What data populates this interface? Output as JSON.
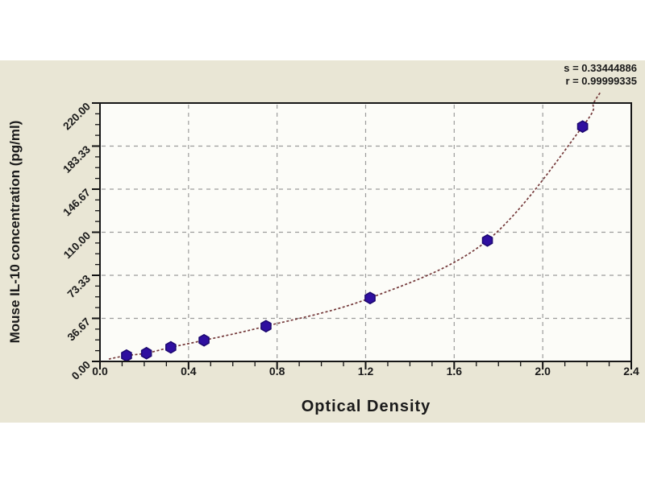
{
  "colors": {
    "page_background": "#ffffff",
    "figure_background": "#e9e6d5",
    "plot_background": "#fcfcf8",
    "plot_border": "#161616",
    "grid": "#9b9b9b",
    "tick": "#111111",
    "curve": "#74393a",
    "marker_fill": "#2f0fa0",
    "marker_stroke": "#1c0870",
    "text": "#1a1a1a"
  },
  "chart_data": {
    "type": "scatter",
    "title": "",
    "xlabel": "Optical Density",
    "ylabel": "Mouse IL-10 concentration (pg/ml)",
    "xlim": [
      0.0,
      2.4
    ],
    "ylim": [
      0.0,
      220.0
    ],
    "x_ticks": [
      0.0,
      0.4,
      0.8,
      1.2,
      1.6,
      2.0,
      2.4
    ],
    "x_tick_labels": [
      "0.0",
      "0.4",
      "0.8",
      "1.2",
      "1.6",
      "2.0",
      "2.4"
    ],
    "x_minor_step": 0.1,
    "y_ticks": [
      0.0,
      36.67,
      73.33,
      110.0,
      146.67,
      183.33,
      220.0
    ],
    "y_tick_labels": [
      "0.00",
      "36.67",
      "73.33",
      "110.00",
      "146.67",
      "183.33",
      "220.00"
    ],
    "y_minor_divisions_per_major": 4,
    "grid": "dashed-on-major-ticks",
    "legend": "none",
    "series": [
      {
        "name": "standard-points",
        "type": "scatter",
        "marker": "hexagon",
        "color": "#2f0fa0",
        "points": [
          [
            0.12,
            5
          ],
          [
            0.21,
            7
          ],
          [
            0.32,
            12
          ],
          [
            0.47,
            18
          ],
          [
            0.75,
            30
          ],
          [
            1.22,
            54
          ],
          [
            1.75,
            103
          ],
          [
            2.18,
            200
          ]
        ]
      },
      {
        "name": "fitted-curve",
        "type": "line",
        "style": "dashed",
        "color": "#74393a",
        "points": [
          [
            0.04,
            2
          ],
          [
            0.12,
            5
          ],
          [
            0.21,
            7
          ],
          [
            0.32,
            12
          ],
          [
            0.47,
            18
          ],
          [
            0.75,
            30
          ],
          [
            1.22,
            54
          ],
          [
            1.75,
            103
          ],
          [
            2.18,
            200
          ],
          [
            2.23,
            220
          ],
          [
            2.26,
            229
          ]
        ]
      }
    ],
    "annotations": [
      {
        "text": "s = 0.33444886",
        "position": "top-right"
      },
      {
        "text": "r = 0.99999335",
        "position": "top-right"
      }
    ]
  }
}
